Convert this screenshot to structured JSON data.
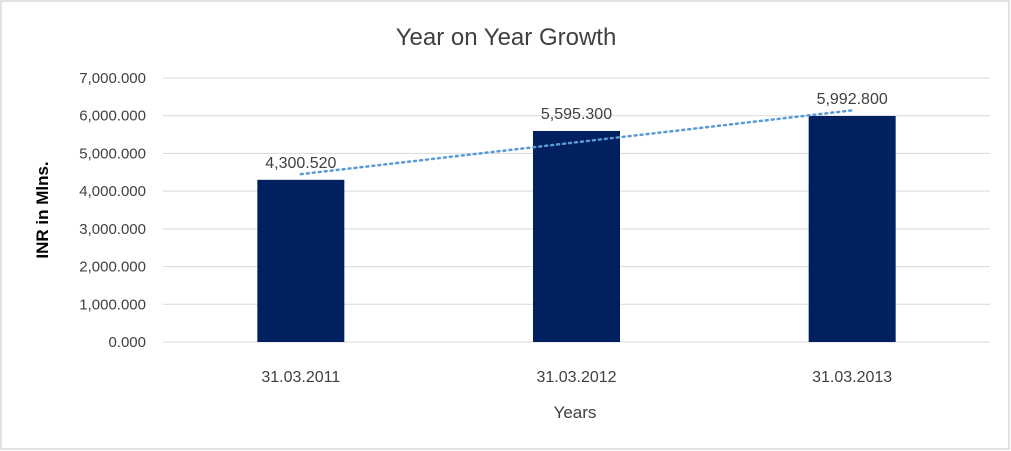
{
  "chart_data": {
    "type": "bar",
    "title": "Year on Year Growth",
    "xlabel": "Years",
    "ylabel": "INR in Mlns.",
    "categories": [
      "31.03.2011",
      "31.03.2012",
      "31.03.2013"
    ],
    "values": [
      4300.52,
      5595.3,
      5992.8
    ],
    "data_labels": [
      "4,300.520",
      "5,595.300",
      "5,992.800"
    ],
    "ylim": [
      0,
      7000
    ],
    "yticks": [
      0,
      1000,
      2000,
      3000,
      4000,
      5000,
      6000,
      7000
    ],
    "ytick_labels": [
      "0.000",
      "1,000.000",
      "2,000.000",
      "3,000.000",
      "4,000.000",
      "5,000.000",
      "6,000.000",
      "7,000.000"
    ],
    "grid": true,
    "trendline": {
      "type": "linear",
      "style": "dotted"
    },
    "colors": {
      "bar": "#002060",
      "trendline": "#5B9BD5",
      "grid": "#D9D9D9"
    }
  }
}
